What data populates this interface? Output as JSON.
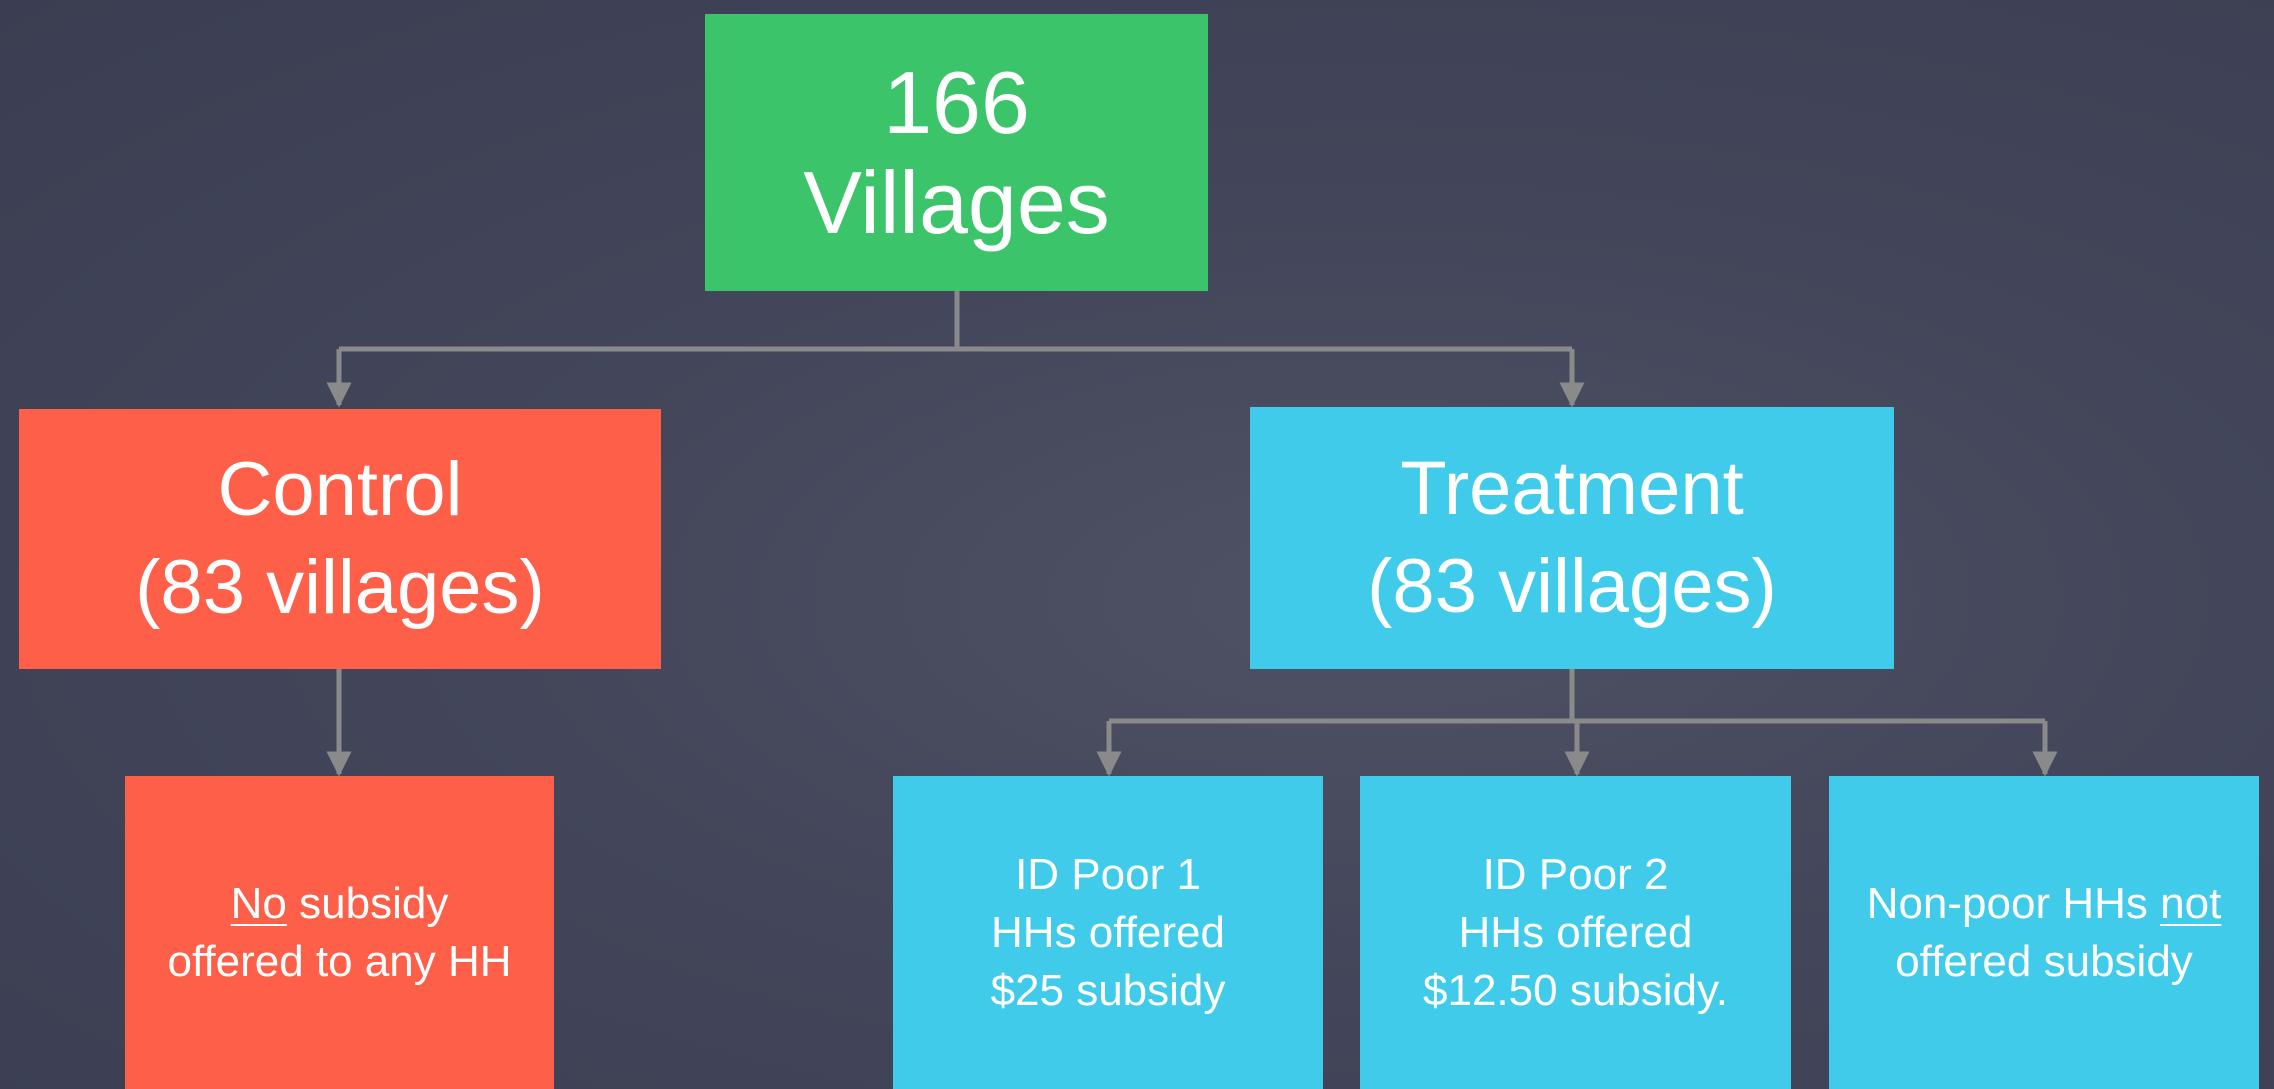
{
  "nodes": {
    "root": {
      "lines": [
        "166",
        "Villages"
      ]
    },
    "control": {
      "lines": [
        "Control",
        "(83 villages)"
      ]
    },
    "treatment": {
      "lines": [
        "Treatment",
        "(83 villages)"
      ]
    },
    "control_detail": {
      "line1": [
        "No",
        "subsidy"
      ],
      "line2": "offered to any HH"
    },
    "id_poor_1": {
      "lines": [
        "ID Poor 1",
        "HHs offered",
        "$25 subsidy"
      ]
    },
    "id_poor_2": {
      "lines": [
        "ID Poor 2",
        "HHs offered",
        "$12.50 subsidy."
      ]
    },
    "non_poor": {
      "line1": [
        "Non-poor HHs",
        "not"
      ],
      "line2": "offered subsidy"
    }
  }
}
